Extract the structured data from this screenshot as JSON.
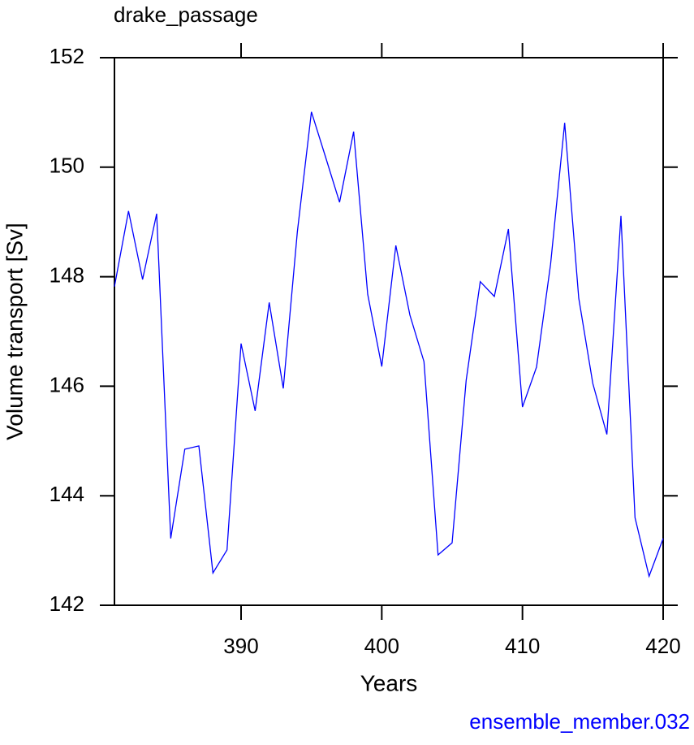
{
  "chart_data": {
    "type": "line",
    "title": "drake_passage",
    "x_label": "Years",
    "y_label": "Volume transport [Sv]",
    "annotation": "ensemble_member.032",
    "x": [
      381,
      382,
      383,
      384,
      385,
      386,
      387,
      388,
      389,
      390,
      391,
      392,
      393,
      394,
      395,
      396,
      397,
      398,
      399,
      400,
      401,
      402,
      403,
      404,
      405,
      406,
      407,
      408,
      409,
      410,
      411,
      412,
      413,
      414,
      415,
      416,
      417,
      418,
      419,
      420
    ],
    "series": [
      {
        "name": "ensemble_member.032",
        "color": "#0000ff",
        "values": [
          147.82,
          149.2,
          147.95,
          149.15,
          143.22,
          144.85,
          144.91,
          142.59,
          143.01,
          146.78,
          145.55,
          147.53,
          145.96,
          148.82,
          151.01,
          150.19,
          149.36,
          150.65,
          147.68,
          146.36,
          148.57,
          147.3,
          146.45,
          142.92,
          143.14,
          146.11,
          147.91,
          147.64,
          148.87,
          145.62,
          146.35,
          148.23,
          150.81,
          147.61,
          146.05,
          145.12,
          149.11,
          143.6,
          142.53,
          143.22
        ]
      }
    ],
    "xlim": [
      381,
      420
    ],
    "ylim": [
      142,
      152
    ],
    "xticks": [
      390,
      400,
      410,
      420
    ],
    "yticks": [
      142,
      144,
      146,
      148,
      150,
      152
    ]
  }
}
